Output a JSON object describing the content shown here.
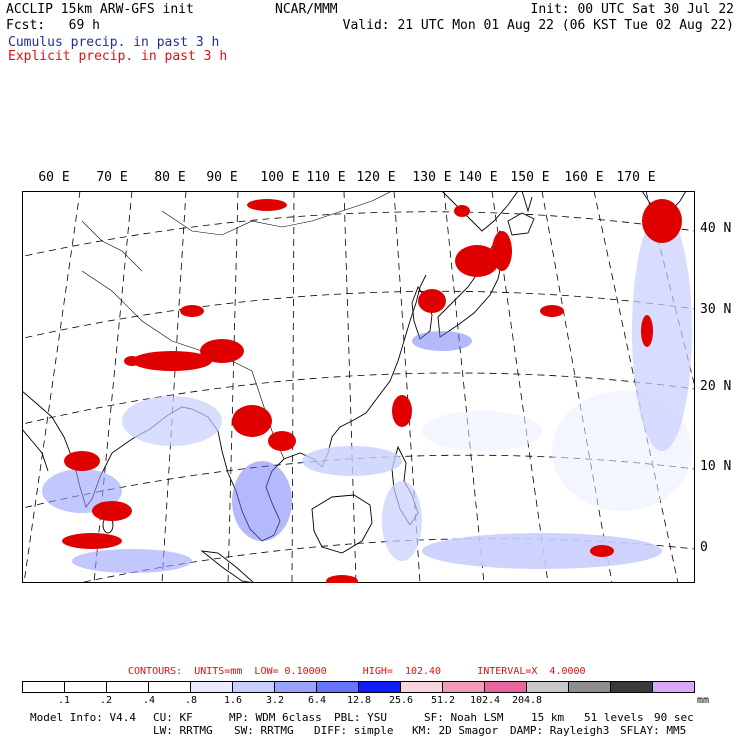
{
  "header": {
    "line1": "ACCLIP 15km ARW-GFS init",
    "line2": "Fcst:   69 h",
    "center": "NCAR/MMM",
    "init": "Init: 00 UTC Sat 30 Jul 22",
    "valid": "Valid: 21 UTC Mon 01 Aug 22 (06 KST Tue 02 Aug 22)",
    "cumulus_label": "Cumulus precip. in past 3 h",
    "explicit_label": "Explicit precip. in past 3 h"
  },
  "colors": {
    "cumulus": "#1f2f9f",
    "explicit": "#e01010",
    "explicit_field": "#e00000",
    "cumulus_field": "#2440ff",
    "coast": "#000000"
  },
  "map": {
    "lon_labels": [
      "60 E",
      "70 E",
      "80 E",
      "90 E",
      "100 E",
      "110 E",
      "120 E",
      "130 E",
      "140 E",
      "150 E",
      "160 E",
      "170 E"
    ],
    "lat_labels": [
      "40 N",
      "30 N",
      "20 N",
      "10 N",
      "0"
    ]
  },
  "legend": {
    "contours_label": "CONTOURS:  UNITS=mm  LOW= 0.10000      HIGH=  102.40      INTERVAL=X  4.0000",
    "bins": [
      "#ffffff",
      "#ffffff",
      "#ffffff",
      "#ffffff",
      "#e9ecff",
      "#c8cefd",
      "#9aa3fb",
      "#6773f8",
      "#0c1df5",
      "#f8d4dc",
      "#f39aba",
      "#e965a0",
      "#c8c8c8",
      "#8e8e8e",
      "#3a3a3a",
      "#d9a9f7"
    ],
    "ticks": [
      ".1",
      ".2",
      ".4",
      ".8",
      "1.6",
      "3.2",
      "6.4",
      "12.8",
      "25.6",
      "51.2",
      "102.4",
      "204.8"
    ],
    "unit": "mm"
  },
  "footer": {
    "line1": [
      "Model Info: V4.4",
      "CU: KF",
      "MP: WDM 6class",
      "PBL: YSU",
      "SF: Noah LSM",
      "15 km",
      "51 levels",
      "90 sec"
    ],
    "line2": [
      "LW: RRTMG",
      "SW: RRTMG",
      "DIFF: simple",
      "KM: 2D Smagor",
      "DAMP: Rayleigh3",
      "SFLAY: MM5"
    ]
  }
}
